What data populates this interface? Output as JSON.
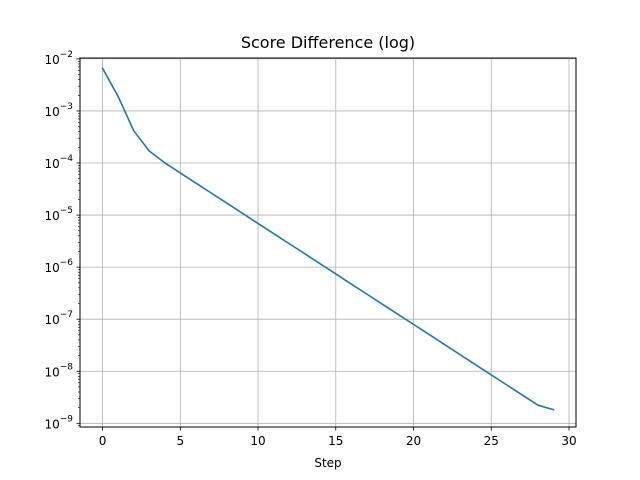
{
  "chart_data": {
    "type": "line",
    "title": "Score Difference (log)",
    "xlabel": "Step",
    "ylabel": "",
    "yscale": "log",
    "xlim": [
      -1.45,
      30.45
    ],
    "ylim": [
      8.5e-10,
      0.0104
    ],
    "grid": true,
    "x_ticks": [
      0,
      5,
      10,
      15,
      20,
      25,
      30
    ],
    "y_ticks": [
      {
        "value": 0.01,
        "label_base": "10",
        "label_exp": "−2"
      },
      {
        "value": 0.001,
        "label_base": "10",
        "label_exp": "−3"
      },
      {
        "value": 0.0001,
        "label_base": "10",
        "label_exp": "−4"
      },
      {
        "value": 1e-05,
        "label_base": "10",
        "label_exp": "−5"
      },
      {
        "value": 1e-06,
        "label_base": "10",
        "label_exp": "−6"
      },
      {
        "value": 1e-07,
        "label_base": "10",
        "label_exp": "−7"
      },
      {
        "value": 1e-08,
        "label_base": "10",
        "label_exp": "−8"
      },
      {
        "value": 1e-09,
        "label_base": "10",
        "label_exp": "−9"
      }
    ],
    "series": [
      {
        "color": "#1f77b4",
        "x": [
          0,
          1,
          2,
          3,
          4,
          5,
          6,
          7,
          8,
          9,
          10,
          11,
          12,
          13,
          14,
          15,
          16,
          17,
          18,
          19,
          20,
          21,
          22,
          23,
          24,
          25,
          26,
          27,
          28,
          29
        ],
        "y": [
          0.0066,
          0.0019,
          0.00042,
          0.00017,
          0.000101,
          6.45e-05,
          4.12e-05,
          2.64e-05,
          1.69e-05,
          1.08e-05,
          6.9e-06,
          4.42e-06,
          2.83e-06,
          1.81e-06,
          1.16e-06,
          7.4e-07,
          4.74e-07,
          3.03e-07,
          1.94e-07,
          1.24e-07,
          7.95e-08,
          5.09e-08,
          3.26e-08,
          2.08e-08,
          1.33e-08,
          8.5e-09,
          5.45e-09,
          3.49e-09,
          2.23e-09,
          1.83e-09
        ]
      }
    ]
  }
}
